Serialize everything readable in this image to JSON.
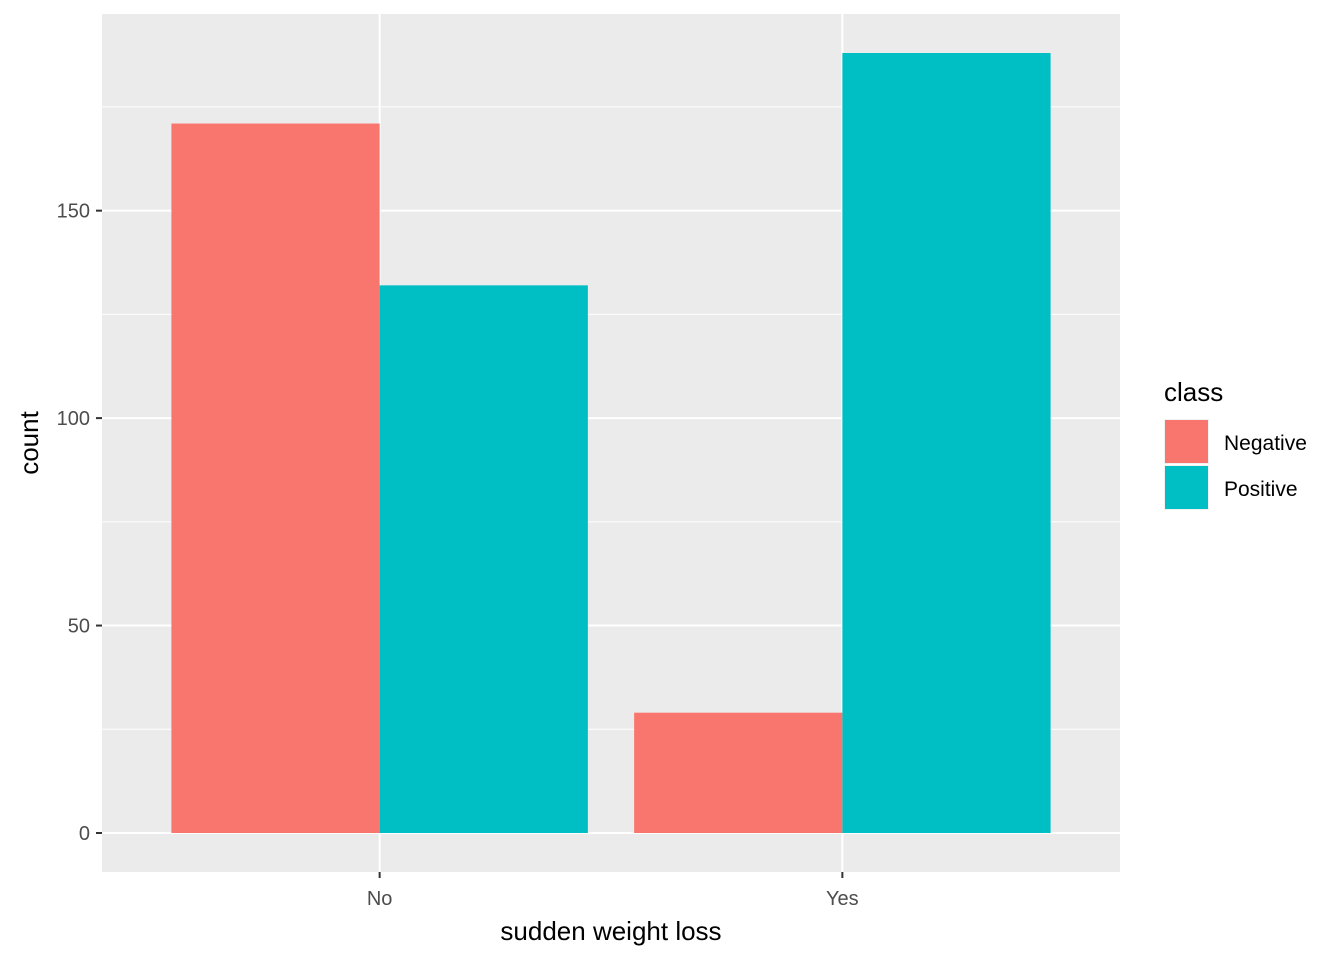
{
  "chart_data": {
    "type": "bar",
    "categories": [
      "No",
      "Yes"
    ],
    "series": [
      {
        "name": "Negative",
        "values": [
          171,
          29
        ],
        "color": "#F8766D"
      },
      {
        "name": "Positive",
        "values": [
          132,
          188
        ],
        "color": "#00BFC4"
      }
    ],
    "xlabel": "sudden weight loss",
    "ylabel": "count",
    "yticks": [
      0,
      50,
      100,
      150
    ],
    "ylim": [
      -9.4,
      197.4
    ],
    "legend_title": "class",
    "legend_position": "right",
    "grid": true,
    "panel_color": "#EBEBEB"
  }
}
